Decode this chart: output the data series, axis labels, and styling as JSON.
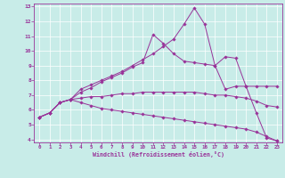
{
  "xlabel": "Windchill (Refroidissement éolien,°C)",
  "bg_color": "#c8ece8",
  "line_color": "#993399",
  "xlim": [
    -0.5,
    23.5
  ],
  "ylim": [
    3.8,
    13.2
  ],
  "xticks": [
    0,
    1,
    2,
    3,
    4,
    5,
    6,
    7,
    8,
    9,
    10,
    11,
    12,
    13,
    14,
    15,
    16,
    17,
    18,
    19,
    20,
    21,
    22,
    23
  ],
  "yticks": [
    4,
    5,
    6,
    7,
    8,
    9,
    10,
    11,
    12,
    13
  ],
  "series": [
    [
      5.5,
      5.8,
      6.5,
      6.7,
      7.4,
      7.7,
      8.0,
      8.3,
      8.6,
      9.0,
      9.4,
      9.8,
      10.3,
      10.8,
      11.8,
      12.9,
      11.8,
      9.0,
      9.6,
      9.5,
      7.6,
      5.8,
      4.1,
      3.9
    ],
    [
      5.5,
      5.8,
      6.5,
      6.7,
      7.2,
      7.5,
      7.9,
      8.2,
      8.5,
      8.9,
      9.2,
      11.1,
      10.5,
      9.8,
      9.3,
      9.2,
      9.1,
      9.0,
      7.4,
      7.6,
      7.6,
      7.6,
      7.6,
      7.6
    ],
    [
      5.5,
      5.8,
      6.5,
      6.7,
      6.8,
      6.9,
      6.9,
      7.0,
      7.1,
      7.1,
      7.2,
      7.2,
      7.2,
      7.2,
      7.2,
      7.2,
      7.1,
      7.0,
      7.0,
      6.9,
      6.8,
      6.6,
      6.3,
      6.2
    ],
    [
      5.5,
      5.8,
      6.5,
      6.7,
      6.5,
      6.3,
      6.1,
      6.0,
      5.9,
      5.8,
      5.7,
      5.6,
      5.5,
      5.4,
      5.3,
      5.2,
      5.1,
      5.0,
      4.9,
      4.8,
      4.7,
      4.5,
      4.2,
      3.9
    ]
  ]
}
